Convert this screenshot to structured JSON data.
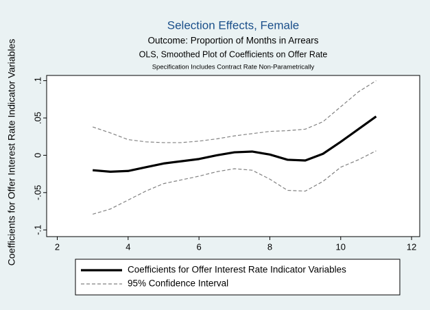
{
  "chart_data": {
    "type": "line",
    "title": "Selection Effects, Female",
    "subtitle": "Outcome: Proportion of Months in Arrears",
    "subtitle2": "OLS, Smoothed Plot of Coefficients on Offer Rate",
    "note": "Specification Includes Contract Rate Non-Parametrically",
    "ylabel": "Coefficients for Offer Interest Rate Indicator Variables",
    "x": [
      3,
      3.5,
      4,
      4.5,
      5,
      5.5,
      6,
      6.5,
      7,
      7.5,
      8,
      8.5,
      9,
      9.5,
      10,
      10.5,
      11
    ],
    "series": [
      {
        "name": "Coefficients for Offer Interest Rate Indicator Variables",
        "color": "#000000",
        "style": "solid",
        "values": [
          -0.02,
          -0.022,
          -0.021,
          -0.016,
          -0.011,
          -0.008,
          -0.005,
          0.0,
          0.004,
          0.005,
          0.001,
          -0.006,
          -0.007,
          0.002,
          0.018,
          0.035,
          0.052
        ]
      },
      {
        "name": "95% Confidence Interval",
        "color": "#808080",
        "style": "dashed",
        "values": [
          0.038,
          0.03,
          0.021,
          0.018,
          0.017,
          0.017,
          0.019,
          0.022,
          0.026,
          0.029,
          0.032,
          0.033,
          0.035,
          0.045,
          0.065,
          0.085,
          0.1
        ]
      },
      {
        "color": "#808080",
        "style": "dashed",
        "values": [
          -0.079,
          -0.072,
          -0.06,
          -0.048,
          -0.038,
          -0.033,
          -0.028,
          -0.022,
          -0.018,
          -0.02,
          -0.032,
          -0.047,
          -0.048,
          -0.035,
          -0.016,
          -0.006,
          0.006
        ]
      }
    ],
    "xlim": [
      1.7,
      12.23
    ],
    "xticks": [
      2,
      4,
      6,
      8,
      10,
      12
    ],
    "ylim": [
      -0.109,
      0.107
    ],
    "yticks": [
      {
        "value": -0.1,
        "label": "-.1"
      },
      {
        "value": -0.05,
        "label": "-.05"
      },
      0,
      {
        "value": 0.05,
        "label": ".05"
      },
      {
        "value": 0.1,
        "label": ".1"
      }
    ],
    "grid": false
  }
}
